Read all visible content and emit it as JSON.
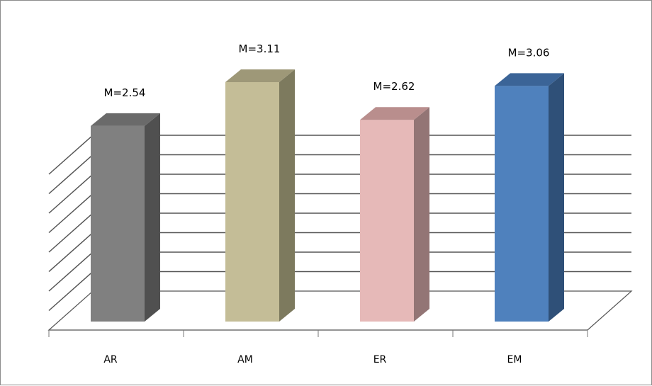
{
  "chart_data": {
    "type": "bar",
    "style": "3d-column",
    "categories": [
      "AR",
      "AM",
      "ER",
      "EM"
    ],
    "values": [
      2.54,
      3.11,
      2.62,
      3.06
    ],
    "data_labels": [
      "M=2.54",
      "M=3.11",
      "M=2.62",
      "M=3.06"
    ],
    "ylim": [
      0,
      4
    ],
    "grid": true,
    "legend": "none",
    "colors": {
      "AR": {
        "front": "#808080",
        "side": "#505050",
        "top": "#6a6a6a"
      },
      "AM": {
        "front": "#c4bd97",
        "side": "#7d7a5e",
        "top": "#9e9878"
      },
      "ER": {
        "front": "#e6b9b8",
        "side": "#937575",
        "top": "#b98e8d"
      },
      "EM": {
        "front": "#4f81bd",
        "side": "#2f5078",
        "top": "#3b6497"
      }
    }
  }
}
